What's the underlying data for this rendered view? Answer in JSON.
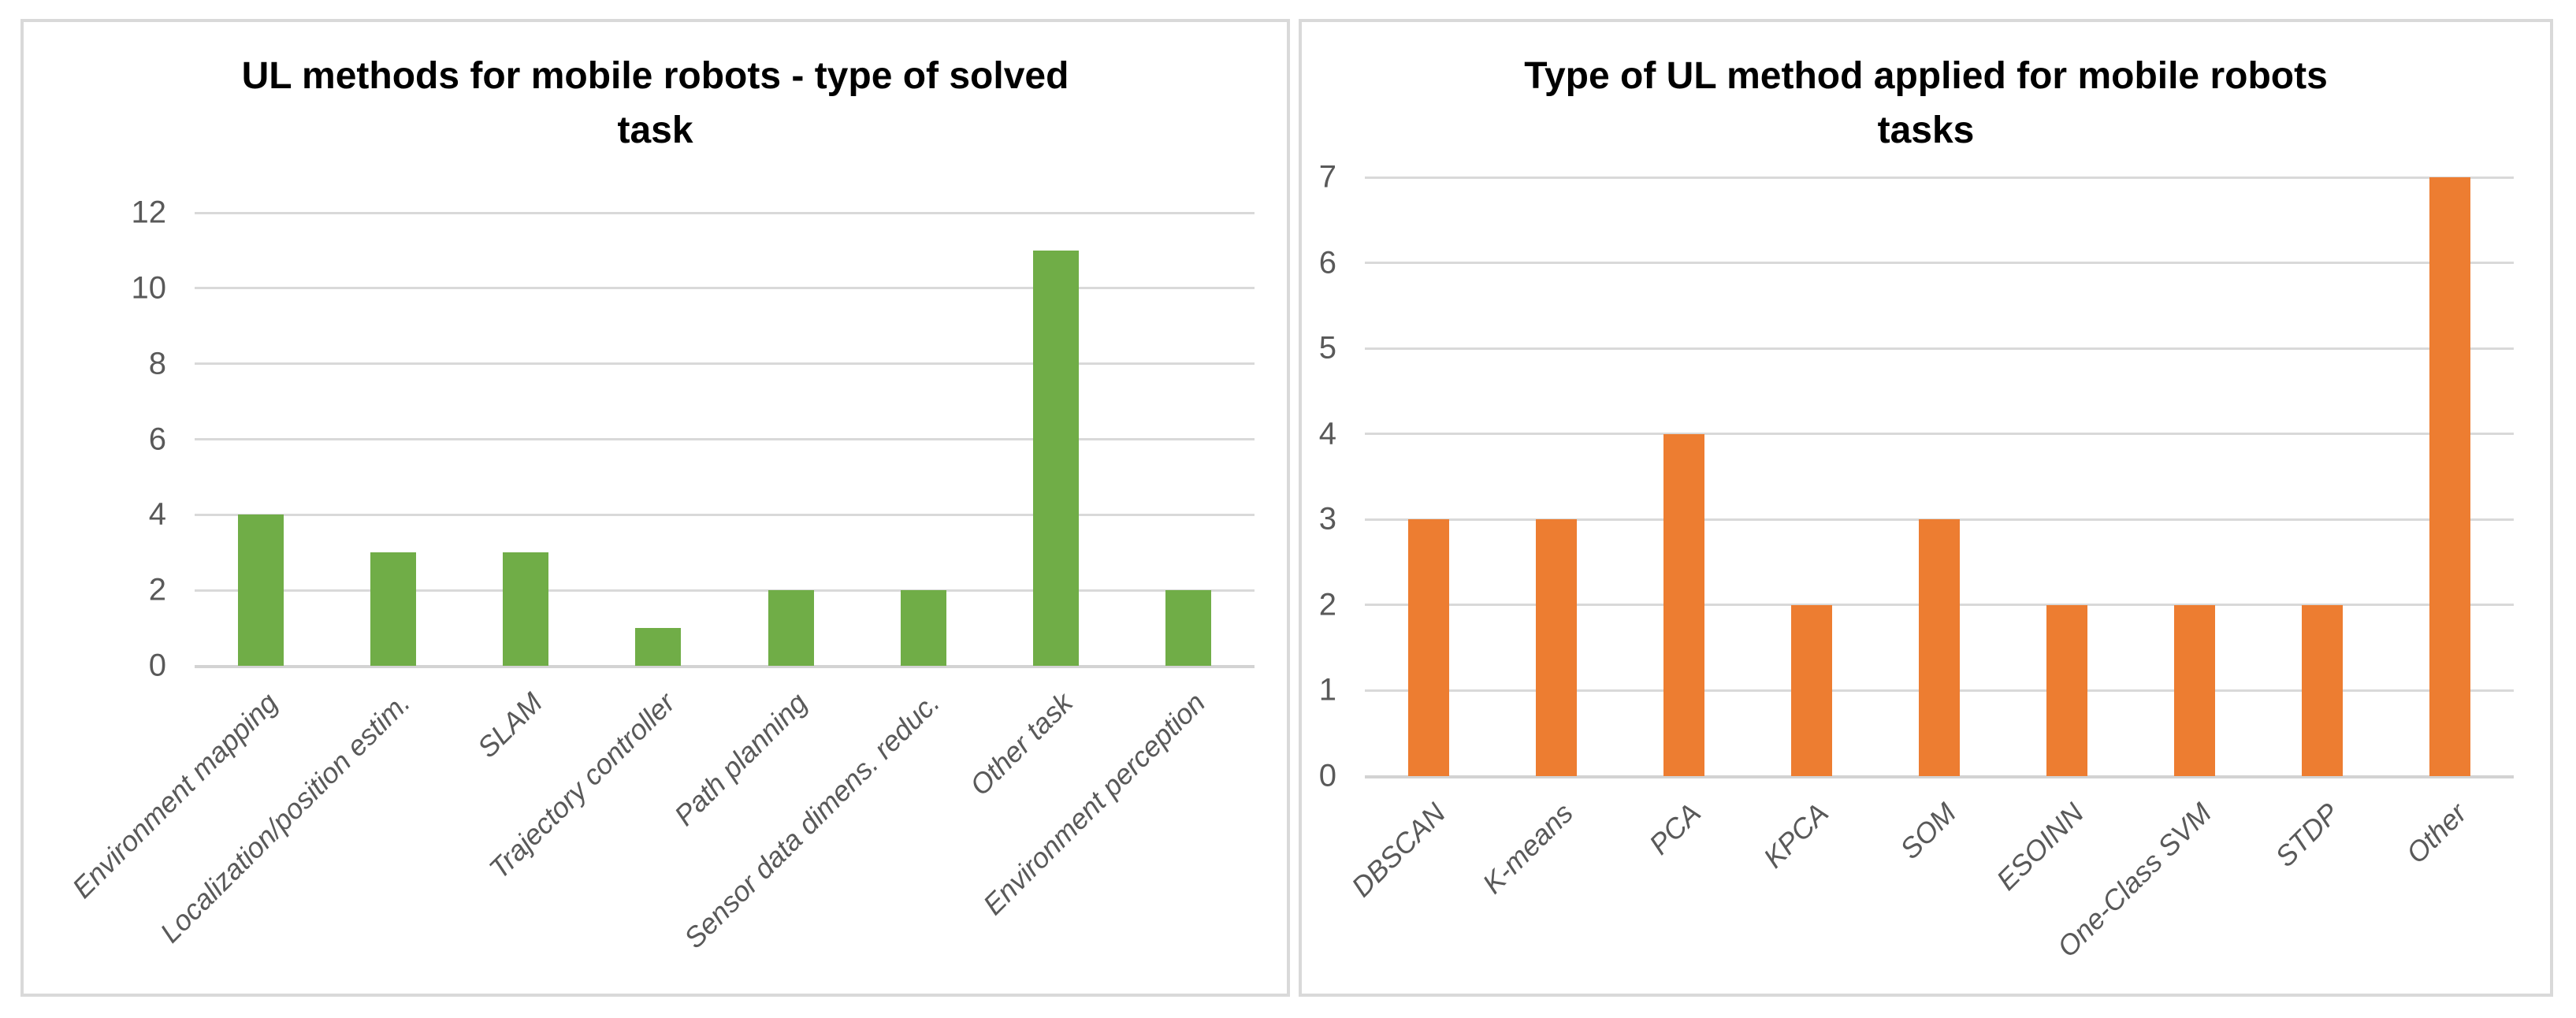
{
  "styles": {
    "background": "#ffffff",
    "panel_border_color": "#d9d9d9",
    "gridline_color": "#d9d9d9",
    "tick_label_color": "#595959",
    "title_color": "#000000"
  },
  "chart_data": [
    {
      "type": "bar",
      "title": "UL methods for mobile robots - type of solved task",
      "title_lines": [
        "UL methods for mobile robots - type of solved",
        "task"
      ],
      "categories": [
        "Environment mapping",
        "Localization/position estim.",
        "SLAM",
        "Trajectory controller",
        "Path planning",
        "Sensor data dimens. reduc.",
        "Other task",
        "Environment perception"
      ],
      "values": [
        4,
        3,
        3,
        1,
        2,
        2,
        11,
        2
      ],
      "bar_color": "#70AD47",
      "ylim": [
        0,
        12
      ],
      "yticks": [
        0,
        2,
        4,
        6,
        8,
        10,
        12
      ],
      "grid": true,
      "legend": false,
      "xlabel": "",
      "ylabel": ""
    },
    {
      "type": "bar",
      "title": "Type of UL method applied for mobile robots tasks",
      "title_lines": [
        "Type of UL method applied for mobile robots",
        "tasks"
      ],
      "categories": [
        "DBSCAN",
        "K-means",
        "PCA",
        "KPCA",
        "SOM",
        "ESOINN",
        "One-Class SVM",
        "STDP",
        "Other"
      ],
      "values": [
        3,
        3,
        4,
        2,
        3,
        2,
        2,
        2,
        7
      ],
      "bar_color": "#ED7D31",
      "ylim": [
        0,
        7
      ],
      "yticks": [
        0,
        1,
        2,
        3,
        4,
        5,
        6,
        7
      ],
      "grid": true,
      "legend": false,
      "xlabel": "",
      "ylabel": ""
    }
  ]
}
